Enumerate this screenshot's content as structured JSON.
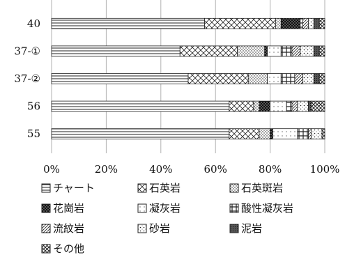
{
  "chart_data": {
    "type": "bar",
    "orientation": "horizontal",
    "stacked": "percent",
    "title": "",
    "xlabel": "",
    "ylabel": "",
    "xlim": [
      0,
      100
    ],
    "x_ticks": [
      "0%",
      "20%",
      "40%",
      "60%",
      "80%",
      "100%"
    ],
    "grid": "vertical",
    "legend_position": "bottom",
    "categories": [
      "40",
      "37-①",
      "37-②",
      "56",
      "55"
    ],
    "series": [
      {
        "name": "チャート",
        "pattern": "horizontal-lines",
        "values": [
          56,
          47,
          50,
          65,
          65
        ]
      },
      {
        "name": "石英岩",
        "pattern": "cross-hatch",
        "values": [
          26,
          21,
          22,
          9,
          11
        ]
      },
      {
        "name": "石英斑岩",
        "pattern": "dense-dots",
        "values": [
          2,
          10,
          7,
          2,
          4
        ]
      },
      {
        "name": "花崗岩",
        "pattern": "black-dots",
        "values": [
          7,
          1,
          0,
          4,
          1
        ]
      },
      {
        "name": "凝灰岩",
        "pattern": "sparse-dots",
        "values": [
          0,
          5,
          5,
          6,
          9
        ]
      },
      {
        "name": "酸性凝灰岩",
        "pattern": "grid",
        "values": [
          1,
          4,
          5,
          2,
          4
        ]
      },
      {
        "name": "流紋岩",
        "pattern": "diagonal",
        "values": [
          2,
          3,
          3,
          2,
          1
        ]
      },
      {
        "name": "砂岩",
        "pattern": "dots",
        "values": [
          2,
          5,
          4,
          4,
          4
        ]
      },
      {
        "name": "泥岩",
        "pattern": "dark-dots",
        "values": [
          2,
          2,
          2,
          1,
          0
        ]
      },
      {
        "name": "その他",
        "pattern": "diamond-hatch",
        "values": [
          2,
          2,
          2,
          5,
          1
        ]
      }
    ],
    "colors": {
      "stroke": "#222222",
      "grid": "#b0b0b0",
      "ink": "#111111",
      "background": "#ffffff"
    }
  }
}
